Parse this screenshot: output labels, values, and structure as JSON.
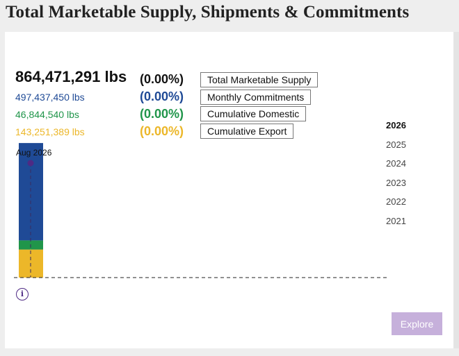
{
  "title": "Total Marketable Supply, Shipments & Commitments",
  "metrics": {
    "total": {
      "value": "864,471,291 lbs",
      "pct": "(0.00%)",
      "label": "Total Marketable Supply",
      "color": "#111111"
    },
    "monthly": {
      "value": "497,437,450 lbs",
      "pct": "(0.00%)",
      "label": "Monthly Commitments",
      "color": "#1f4a96"
    },
    "domestic": {
      "value": "46,844,540 lbs",
      "pct": "(0.00%)",
      "label": "Cumulative Domestic",
      "color": "#20954a"
    },
    "export": {
      "value": "143,251,389 lbs",
      "pct": "(0.00%)",
      "label": "Cumulative Export",
      "color": "#ecb729"
    }
  },
  "years": [
    "2026",
    "2025",
    "2024",
    "2023",
    "2022",
    "2021"
  ],
  "selected_year": "2026",
  "explore_label": "Explore",
  "info_icon_glyph": "i",
  "colors": {
    "brand_purple": "#4e2a84",
    "explore_bg": "#c6b0db"
  },
  "chart_data": {
    "type": "bar",
    "stacked": true,
    "categories": [
      "Aug 2026"
    ],
    "series": [
      {
        "name": "Cumulative Export",
        "color": "#ecb729",
        "values": [
          143251389
        ]
      },
      {
        "name": "Cumulative Domestic",
        "color": "#20954a",
        "values": [
          46844540
        ]
      },
      {
        "name": "Monthly Commitments",
        "color": "#1f4a96",
        "values": [
          497437450
        ]
      }
    ],
    "total_marketable_supply": 864471291,
    "marker_label": "Aug 2026",
    "ylim": [
      0,
      1000000000
    ],
    "baseline": "dashed"
  }
}
